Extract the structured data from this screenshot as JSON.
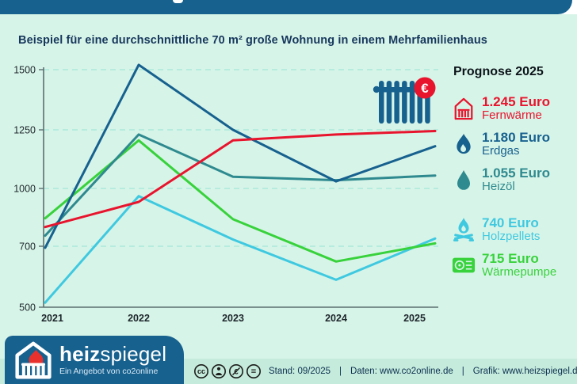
{
  "title": "Beispiel für eine durchschnittliche 70 m² große Wohnung in einem Mehrfamilienhaus",
  "badge": {
    "currency": "€"
  },
  "colors": {
    "brand_blue": "#17618f",
    "background_mint": "#d7f4e8",
    "footer_mint": "#c4ebdc",
    "fernwaerme_red": "#e8142d",
    "erdgas_blue": "#17618f",
    "heizoel_teal": "#2e8a8f",
    "holzpellets_cyan": "#3fc9e0",
    "waermepumpe_green": "#38d23c"
  },
  "chart_data": {
    "type": "line",
    "categories": [
      "2021",
      "2022",
      "2023",
      "2024",
      "2025"
    ],
    "series": [
      {
        "name": "Fernwärme",
        "color": "#e8142d",
        "values": [
          800,
          930,
          1205,
          1230,
          1245
        ]
      },
      {
        "name": "Erdgas",
        "color": "#17618f",
        "values": [
          695,
          1520,
          1250,
          1030,
          1180
        ]
      },
      {
        "name": "Heizöl",
        "color": "#2e8a8f",
        "values": [
          755,
          1230,
          1050,
          1035,
          1055
        ]
      },
      {
        "name": "Holzpellets",
        "color": "#3fc9e0",
        "values": [
          515,
          960,
          735,
          590,
          740
        ]
      },
      {
        "name": "Wärmepumpe",
        "color": "#38d23c",
        "values": [
          845,
          1205,
          840,
          650,
          715
        ]
      }
    ],
    "unit": "Euro",
    "y_ticks": [
      500,
      700,
      1000,
      1250,
      1500
    ],
    "ylim": [
      500,
      1550
    ],
    "grid": "dashed-horizontal",
    "legend_position": "right"
  },
  "legend": {
    "title": "Prognose 2025",
    "entries": [
      {
        "value": "1.245 Euro",
        "label": "Fernwärme",
        "color": "#e8142d",
        "icon": "district-heating"
      },
      {
        "value": "1.180 Euro",
        "label": "Erdgas",
        "color": "#17618f",
        "icon": "gas-flame"
      },
      {
        "value": "1.055 Euro",
        "label": "Heizöl",
        "color": "#2e8a8f",
        "icon": "oil-drop"
      },
      {
        "value": "740 Euro",
        "label": "Holzpellets",
        "color": "#3fc9e0",
        "icon": "wood-fire"
      },
      {
        "value": "715 Euro",
        "label": "Wärmepumpe",
        "color": "#38d23c",
        "icon": "heat-pump"
      }
    ]
  },
  "logo": {
    "brand_bold": "heiz",
    "brand_light": "spiegel",
    "tagline": "Ein Angebot von co2online"
  },
  "footer": {
    "license": "CC BY-NC-ND",
    "stand": "Stand: 09/2025",
    "daten": "Daten: www.co2online.de",
    "grafik": "Grafik: www.heizspiegel.de",
    "separator": "|"
  }
}
